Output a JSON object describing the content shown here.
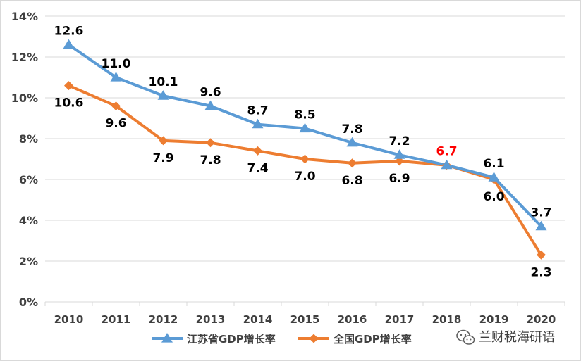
{
  "chart_data": {
    "type": "line",
    "categories": [
      "2010",
      "2011",
      "2012",
      "2013",
      "2014",
      "2015",
      "2016",
      "2017",
      "2018",
      "2019",
      "2020"
    ],
    "ylim": [
      0,
      14
    ],
    "y_ticks": [
      "0%",
      "2%",
      "4%",
      "6%",
      "8%",
      "10%",
      "12%",
      "14%"
    ],
    "grid": "horizontal",
    "legend_position": "bottom",
    "series": [
      {
        "name": "江苏省GDP增长率",
        "color": "#5b9bd5",
        "marker": "triangle",
        "values": [
          12.6,
          11.0,
          10.1,
          9.6,
          8.7,
          8.5,
          7.8,
          7.2,
          6.7,
          6.1,
          3.7
        ],
        "labels": [
          "12.6",
          "11.0",
          "10.1",
          "9.6",
          "8.7",
          "8.5",
          "7.8",
          "7.2",
          "6.7",
          "6.1",
          "3.7"
        ],
        "label_position": "above"
      },
      {
        "name": "全国GDP增长率",
        "color": "#ed7d31",
        "marker": "diamond",
        "values": [
          10.6,
          9.6,
          7.9,
          7.8,
          7.4,
          7.0,
          6.8,
          6.9,
          6.7,
          6.0,
          2.3
        ],
        "labels": [
          "10.6",
          "9.6",
          "7.9",
          "7.8",
          "7.4",
          "7.0",
          "6.8",
          "6.9",
          "",
          "6.0",
          "2.3"
        ],
        "label_position": "below"
      }
    ],
    "highlight_label_color": "#ff0000",
    "highlight_index": 8
  },
  "watermark": {
    "text": "兰财税海研语",
    "icon": "wechat-icon"
  },
  "colors": {
    "grid": "#d9d9d9",
    "label_text": "#000000",
    "tick_text": "#404040"
  }
}
